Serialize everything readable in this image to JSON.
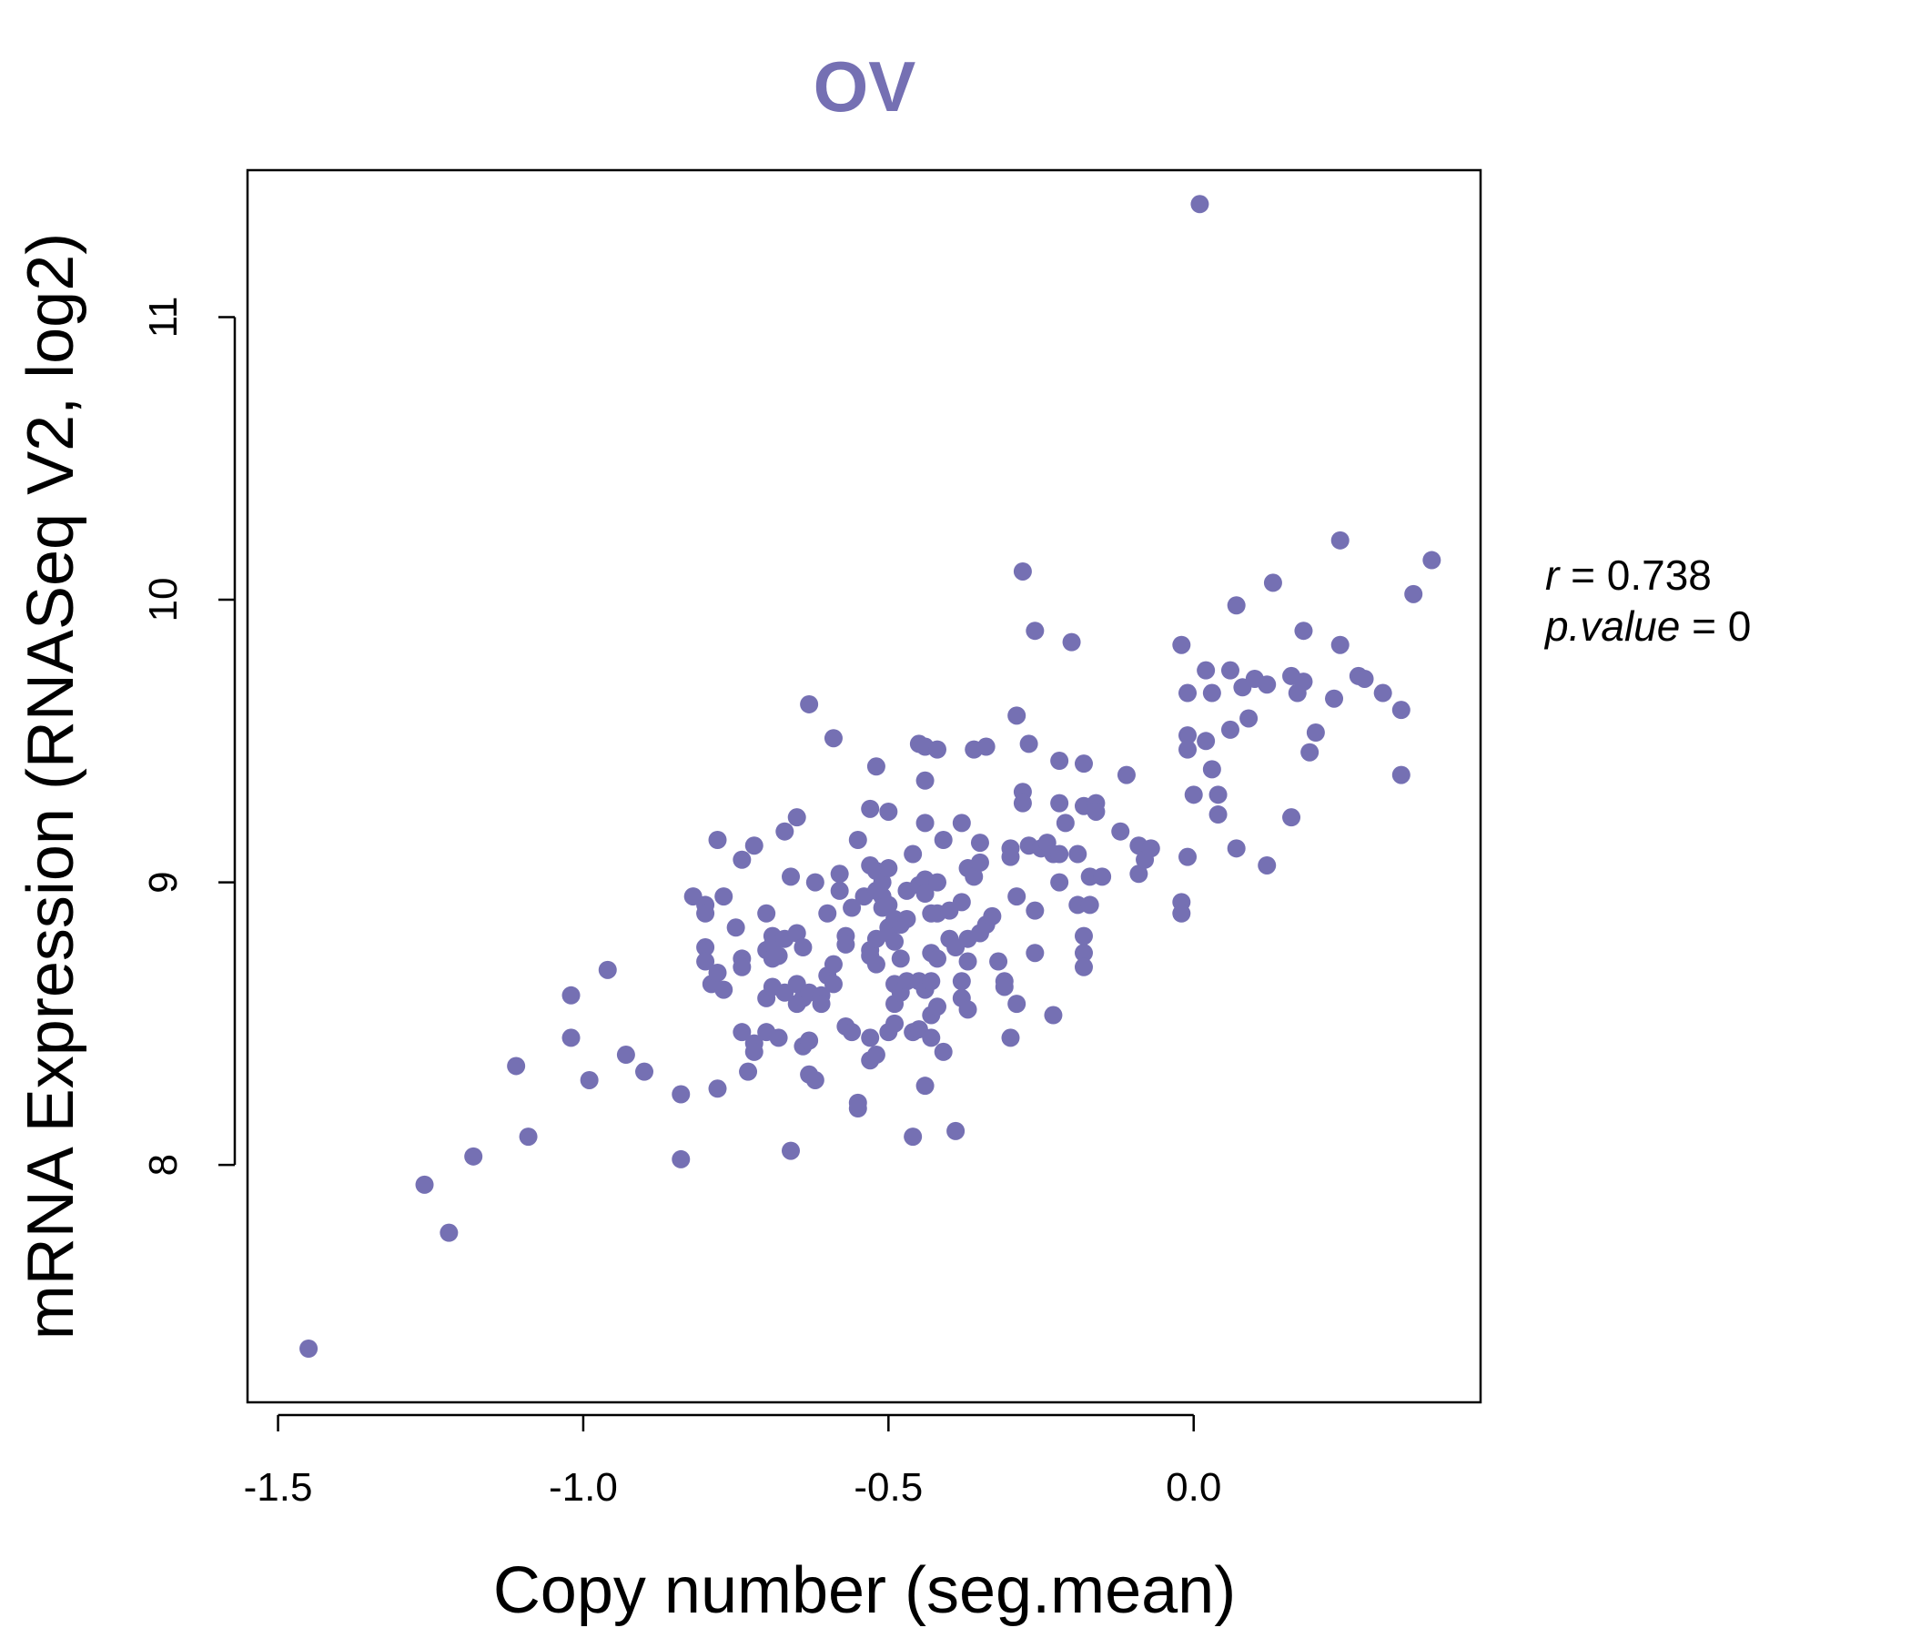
{
  "chart_data": {
    "type": "scatter",
    "title": "OV",
    "xlabel": "Copy number (seg.mean)",
    "ylabel": "mRNA Expression (RNASeq V2, log2)",
    "xlim": [
      -1.55,
      0.47
    ],
    "ylim": [
      7.16,
      11.52
    ],
    "xticks": [
      {
        "value": -1.5,
        "label": "-1.5"
      },
      {
        "value": -1.0,
        "label": "-1.0"
      },
      {
        "value": -0.5,
        "label": "-0.5"
      },
      {
        "value": 0.0,
        "label": "0.0"
      }
    ],
    "yticks": [
      {
        "value": 8,
        "label": "8"
      },
      {
        "value": 9,
        "label": "9"
      },
      {
        "value": 10,
        "label": "10"
      },
      {
        "value": 11,
        "label": "11"
      }
    ],
    "stats": {
      "r_label": "r",
      "r_value": "0.738",
      "p_label": "p.value",
      "p_value": "0"
    },
    "colors": {
      "points": "#7570b3",
      "title": "#7570b3",
      "axis": "#000000"
    },
    "grid": false,
    "points": [
      [
        -1.45,
        7.35
      ],
      [
        -1.26,
        7.93
      ],
      [
        -1.22,
        7.76
      ],
      [
        -1.18,
        8.03
      ],
      [
        -1.11,
        8.35
      ],
      [
        -1.09,
        8.1
      ],
      [
        -1.02,
        8.45
      ],
      [
        -1.02,
        8.6
      ],
      [
        -0.99,
        8.3
      ],
      [
        -0.96,
        8.69
      ],
      [
        -0.93,
        8.39
      ],
      [
        -0.9,
        8.33
      ],
      [
        -0.84,
        8.25
      ],
      [
        -0.84,
        8.02
      ],
      [
        -0.82,
        8.95
      ],
      [
        -0.8,
        8.92
      ],
      [
        -0.8,
        8.89
      ],
      [
        -0.8,
        8.77
      ],
      [
        -0.8,
        8.72
      ],
      [
        -0.79,
        8.64
      ],
      [
        -0.78,
        9.15
      ],
      [
        -0.78,
        8.68
      ],
      [
        -0.78,
        8.27
      ],
      [
        -0.77,
        8.95
      ],
      [
        -0.77,
        8.62
      ],
      [
        -0.75,
        8.84
      ],
      [
        -0.74,
        8.73
      ],
      [
        -0.74,
        8.7
      ],
      [
        -0.74,
        9.08
      ],
      [
        -0.74,
        8.47
      ],
      [
        -0.73,
        8.33
      ],
      [
        -0.72,
        9.13
      ],
      [
        -0.72,
        8.43
      ],
      [
        -0.72,
        8.4
      ],
      [
        -0.7,
        8.89
      ],
      [
        -0.7,
        8.76
      ],
      [
        -0.7,
        8.59
      ],
      [
        -0.7,
        8.47
      ],
      [
        -0.69,
        8.81
      ],
      [
        -0.69,
        8.78
      ],
      [
        -0.69,
        8.73
      ],
      [
        -0.69,
        8.63
      ],
      [
        -0.68,
        8.74
      ],
      [
        -0.68,
        8.45
      ],
      [
        -0.67,
        9.18
      ],
      [
        -0.67,
        8.8
      ],
      [
        -0.67,
        8.61
      ],
      [
        -0.66,
        9.02
      ],
      [
        -0.66,
        8.05
      ],
      [
        -0.65,
        9.23
      ],
      [
        -0.65,
        8.82
      ],
      [
        -0.65,
        8.64
      ],
      [
        -0.65,
        8.57
      ],
      [
        -0.64,
        8.77
      ],
      [
        -0.64,
        8.59
      ],
      [
        -0.64,
        8.42
      ],
      [
        -0.63,
        9.63
      ],
      [
        -0.63,
        8.61
      ],
      [
        -0.63,
        8.44
      ],
      [
        -0.63,
        8.32
      ],
      [
        -0.62,
        9.0
      ],
      [
        -0.62,
        8.3
      ],
      [
        -0.61,
        8.6
      ],
      [
        -0.61,
        8.57
      ],
      [
        -0.6,
        8.67
      ],
      [
        -0.6,
        8.89
      ],
      [
        -0.59,
        9.51
      ],
      [
        -0.59,
        8.71
      ],
      [
        -0.59,
        8.64
      ],
      [
        -0.58,
        9.03
      ],
      [
        -0.58,
        8.97
      ],
      [
        -0.57,
        8.81
      ],
      [
        -0.57,
        8.78
      ],
      [
        -0.57,
        8.49
      ],
      [
        -0.56,
        8.47
      ],
      [
        -0.56,
        8.91
      ],
      [
        -0.55,
        9.15
      ],
      [
        -0.55,
        8.22
      ],
      [
        -0.55,
        8.2
      ],
      [
        -0.54,
        8.95
      ],
      [
        -0.53,
        9.26
      ],
      [
        -0.53,
        9.06
      ],
      [
        -0.53,
        8.76
      ],
      [
        -0.53,
        8.74
      ],
      [
        -0.53,
        8.45
      ],
      [
        -0.53,
        8.37
      ],
      [
        -0.52,
        9.41
      ],
      [
        -0.52,
        9.04
      ],
      [
        -0.52,
        8.97
      ],
      [
        -0.52,
        8.8
      ],
      [
        -0.52,
        8.71
      ],
      [
        -0.52,
        8.39
      ],
      [
        -0.51,
        9.0
      ],
      [
        -0.51,
        8.95
      ],
      [
        -0.51,
        8.91
      ],
      [
        -0.5,
        9.05
      ],
      [
        -0.5,
        9.25
      ],
      [
        -0.5,
        8.92
      ],
      [
        -0.5,
        8.84
      ],
      [
        -0.5,
        8.82
      ],
      [
        -0.5,
        8.47
      ],
      [
        -0.49,
        8.87
      ],
      [
        -0.49,
        8.79
      ],
      [
        -0.49,
        8.64
      ],
      [
        -0.49,
        8.57
      ],
      [
        -0.49,
        8.5
      ],
      [
        -0.48,
        8.85
      ],
      [
        -0.48,
        8.73
      ],
      [
        -0.48,
        8.61
      ],
      [
        -0.47,
        8.97
      ],
      [
        -0.47,
        8.87
      ],
      [
        -0.47,
        8.65
      ],
      [
        -0.46,
        9.1
      ],
      [
        -0.46,
        8.47
      ],
      [
        -0.46,
        8.1
      ],
      [
        -0.45,
        9.49
      ],
      [
        -0.45,
        8.99
      ],
      [
        -0.45,
        8.65
      ],
      [
        -0.45,
        8.48
      ],
      [
        -0.44,
        9.48
      ],
      [
        -0.44,
        9.36
      ],
      [
        -0.44,
        9.21
      ],
      [
        -0.44,
        9.01
      ],
      [
        -0.44,
        8.96
      ],
      [
        -0.44,
        8.62
      ],
      [
        -0.44,
        8.28
      ],
      [
        -0.43,
        8.89
      ],
      [
        -0.43,
        8.75
      ],
      [
        -0.43,
        8.65
      ],
      [
        -0.43,
        8.53
      ],
      [
        -0.43,
        8.45
      ],
      [
        -0.42,
        9.47
      ],
      [
        -0.42,
        9.0
      ],
      [
        -0.42,
        8.89
      ],
      [
        -0.42,
        8.73
      ],
      [
        -0.42,
        8.56
      ],
      [
        -0.41,
        9.15
      ],
      [
        -0.41,
        8.4
      ],
      [
        -0.4,
        8.9
      ],
      [
        -0.4,
        8.8
      ],
      [
        -0.39,
        8.77
      ],
      [
        -0.39,
        8.12
      ],
      [
        -0.38,
        9.21
      ],
      [
        -0.38,
        8.93
      ],
      [
        -0.38,
        8.65
      ],
      [
        -0.38,
        8.59
      ],
      [
        -0.37,
        9.05
      ],
      [
        -0.37,
        8.8
      ],
      [
        -0.37,
        8.72
      ],
      [
        -0.37,
        8.55
      ],
      [
        -0.36,
        9.47
      ],
      [
        -0.36,
        9.02
      ],
      [
        -0.35,
        9.14
      ],
      [
        -0.35,
        8.82
      ],
      [
        -0.35,
        9.07
      ],
      [
        -0.34,
        9.48
      ],
      [
        -0.34,
        8.85
      ],
      [
        -0.33,
        8.88
      ],
      [
        -0.32,
        8.72
      ],
      [
        -0.31,
        8.65
      ],
      [
        -0.31,
        8.63
      ],
      [
        -0.3,
        9.12
      ],
      [
        -0.3,
        9.09
      ],
      [
        -0.3,
        8.45
      ],
      [
        -0.29,
        8.95
      ],
      [
        -0.29,
        8.57
      ],
      [
        -0.29,
        9.59
      ],
      [
        -0.28,
        10.1
      ],
      [
        -0.28,
        9.32
      ],
      [
        -0.28,
        9.28
      ],
      [
        -0.27,
        9.49
      ],
      [
        -0.27,
        9.13
      ],
      [
        -0.26,
        9.89
      ],
      [
        -0.26,
        8.9
      ],
      [
        -0.26,
        8.75
      ],
      [
        -0.25,
        9.12
      ],
      [
        -0.24,
        9.14
      ],
      [
        -0.23,
        9.1
      ],
      [
        -0.23,
        8.53
      ],
      [
        -0.22,
        9.43
      ],
      [
        -0.22,
        9.28
      ],
      [
        -0.22,
        9.1
      ],
      [
        -0.22,
        9.0
      ],
      [
        -0.21,
        9.21
      ],
      [
        -0.2,
        9.85
      ],
      [
        -0.19,
        9.1
      ],
      [
        -0.19,
        8.92
      ],
      [
        -0.18,
        9.42
      ],
      [
        -0.18,
        9.27
      ],
      [
        -0.18,
        8.81
      ],
      [
        -0.18,
        8.75
      ],
      [
        -0.18,
        8.7
      ],
      [
        -0.17,
        9.02
      ],
      [
        -0.17,
        8.92
      ],
      [
        -0.16,
        9.28
      ],
      [
        -0.16,
        9.25
      ],
      [
        -0.15,
        9.02
      ],
      [
        -0.12,
        9.18
      ],
      [
        -0.11,
        9.38
      ],
      [
        -0.09,
        9.13
      ],
      [
        -0.09,
        9.03
      ],
      [
        -0.08,
        9.08
      ],
      [
        -0.07,
        9.12
      ],
      [
        -0.02,
        9.84
      ],
      [
        -0.02,
        8.93
      ],
      [
        -0.02,
        8.89
      ],
      [
        -0.01,
        9.67
      ],
      [
        -0.01,
        9.52
      ],
      [
        -0.01,
        9.47
      ],
      [
        -0.01,
        9.09
      ],
      [
        0.0,
        9.31
      ],
      [
        0.01,
        11.4
      ],
      [
        0.02,
        9.75
      ],
      [
        0.02,
        9.5
      ],
      [
        0.03,
        9.67
      ],
      [
        0.03,
        9.4
      ],
      [
        0.04,
        9.31
      ],
      [
        0.04,
        9.24
      ],
      [
        0.06,
        9.75
      ],
      [
        0.06,
        9.54
      ],
      [
        0.07,
        9.98
      ],
      [
        0.07,
        9.12
      ],
      [
        0.08,
        9.69
      ],
      [
        0.09,
        9.58
      ],
      [
        0.1,
        9.72
      ],
      [
        0.12,
        9.7
      ],
      [
        0.12,
        9.06
      ],
      [
        0.13,
        10.06
      ],
      [
        0.16,
        9.73
      ],
      [
        0.16,
        9.23
      ],
      [
        0.17,
        9.67
      ],
      [
        0.18,
        9.71
      ],
      [
        0.18,
        9.89
      ],
      [
        0.19,
        9.46
      ],
      [
        0.2,
        9.53
      ],
      [
        0.23,
        9.65
      ],
      [
        0.24,
        10.21
      ],
      [
        0.24,
        9.84
      ],
      [
        0.27,
        9.73
      ],
      [
        0.28,
        9.72
      ],
      [
        0.31,
        9.67
      ],
      [
        0.34,
        9.61
      ],
      [
        0.34,
        9.38
      ],
      [
        0.36,
        10.02
      ],
      [
        0.39,
        10.14
      ]
    ]
  }
}
